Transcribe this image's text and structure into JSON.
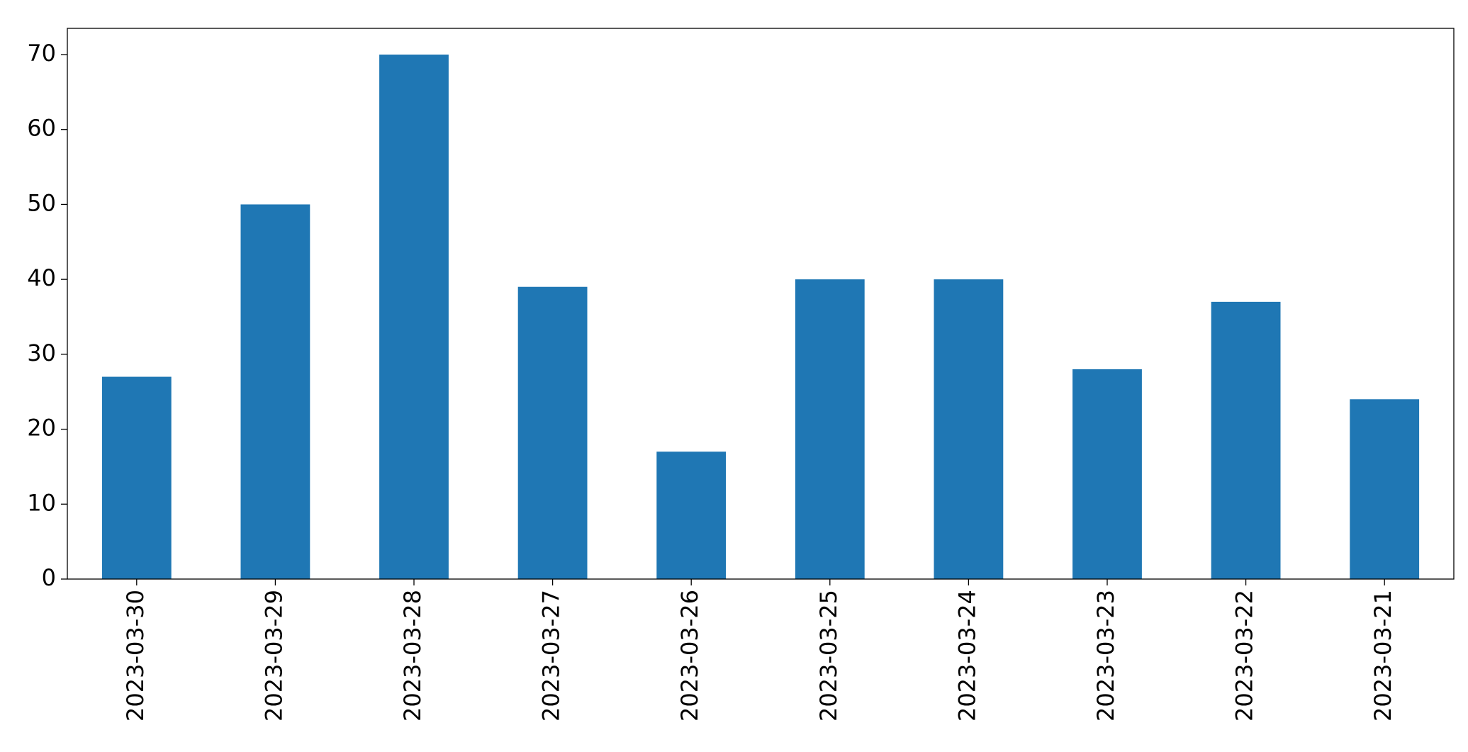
{
  "chart_data": {
    "type": "bar",
    "categories": [
      "2023-03-30",
      "2023-03-29",
      "2023-03-28",
      "2023-03-27",
      "2023-03-26",
      "2023-03-25",
      "2023-03-24",
      "2023-03-23",
      "2023-03-22",
      "2023-03-21"
    ],
    "values": [
      27,
      50,
      70,
      39,
      17,
      40,
      40,
      28,
      37,
      24
    ],
    "color": "#1f77b4",
    "ylim": [
      0,
      73.5
    ],
    "yticks": [
      0,
      10,
      20,
      30,
      40,
      50,
      60,
      70
    ],
    "grid": false
  }
}
